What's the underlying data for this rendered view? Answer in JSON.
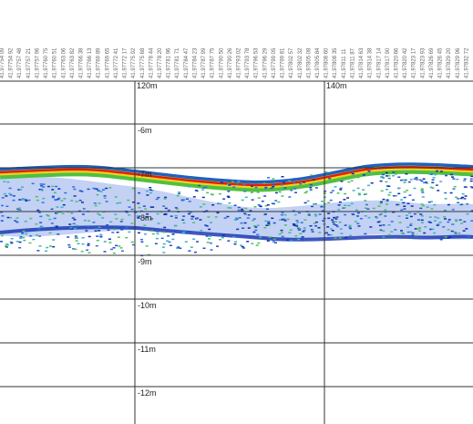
{
  "header": {
    "coordinates": [
      "41.97754 09",
      "41.97754 92",
      "41.97757 48",
      "41.97757 21",
      "41.97757 96",
      "41.97760 75",
      "41.97760 51",
      "41.97763 06",
      "41.97763 82",
      "41.97766 38",
      "41.97766 13",
      "41.97769 89",
      "41.97769 65",
      "41.97772 41",
      "41.97772 17",
      "41.97775 92",
      "41.97775 68",
      "41.97778 44",
      "41.97778 20",
      "41.97781 96",
      "41.97781 71",
      "41.97784 47",
      "41.97784 23",
      "41.97787 99",
      "41.97787 75",
      "41.97790 50",
      "41.97790 26",
      "41.97793 02",
      "41.97793 78",
      "41.97796 53",
      "41.97796 29",
      "41.97799 05",
      "41.97799 81",
      "41.97802 57",
      "41.97802 32",
      "41.97805 08",
      "41.97805 84",
      "41.97808 60",
      "41.97808 35",
      "41.97811 11",
      "41.97811 87",
      "41.97814 63",
      "41.97814 38",
      "41.97817 14",
      "41.97817 90",
      "41.97820 66",
      "41.97820 42",
      "41.97823 17",
      "41.97823 93",
      "41.97826 69",
      "41.97826 45",
      "41.97829 20",
      "41.97829 96",
      "41.97832 72"
    ]
  },
  "axis": {
    "distance_labels": [
      "120m",
      "140m"
    ],
    "depth_labels": [
      "-6m",
      "-7m",
      "-8m",
      "-9m",
      "-10m",
      "-11m",
      "-12m"
    ]
  }
}
